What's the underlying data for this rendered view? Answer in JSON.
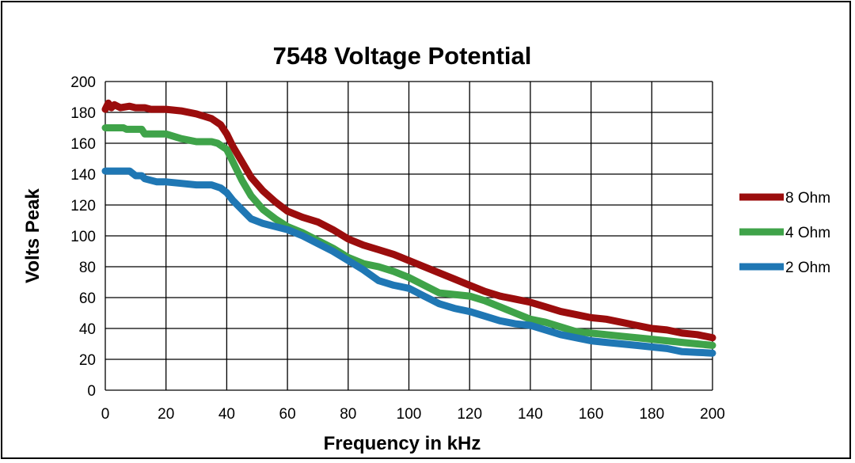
{
  "chart_data": {
    "type": "line",
    "title": "7548 Voltage Potential",
    "xlabel": "Frequency in kHz",
    "ylabel": "Volts Peak",
    "xlim": [
      0,
      200
    ],
    "ylim": [
      0,
      200
    ],
    "x_ticks": [
      0,
      20,
      40,
      60,
      80,
      100,
      120,
      140,
      160,
      180,
      200
    ],
    "y_ticks": [
      0,
      20,
      40,
      60,
      80,
      100,
      120,
      140,
      160,
      180,
      200
    ],
    "grid": true,
    "legend_position": "right",
    "series": [
      {
        "name": "8 Ohm",
        "color": "#9b0d0d",
        "points": [
          [
            0,
            182
          ],
          [
            1,
            186
          ],
          [
            2,
            183
          ],
          [
            3,
            185
          ],
          [
            5,
            183
          ],
          [
            8,
            184
          ],
          [
            10,
            183
          ],
          [
            13,
            183
          ],
          [
            15,
            182
          ],
          [
            20,
            182
          ],
          [
            25,
            181
          ],
          [
            30,
            179
          ],
          [
            35,
            176
          ],
          [
            38,
            172
          ],
          [
            40,
            166
          ],
          [
            42,
            158
          ],
          [
            45,
            148
          ],
          [
            48,
            138
          ],
          [
            52,
            129
          ],
          [
            56,
            122
          ],
          [
            60,
            116
          ],
          [
            65,
            112
          ],
          [
            70,
            109
          ],
          [
            75,
            104
          ],
          [
            80,
            98
          ],
          [
            85,
            94
          ],
          [
            90,
            91
          ],
          [
            95,
            88
          ],
          [
            100,
            84
          ],
          [
            105,
            80
          ],
          [
            110,
            76
          ],
          [
            115,
            72
          ],
          [
            120,
            68
          ],
          [
            125,
            64
          ],
          [
            130,
            61
          ],
          [
            135,
            59
          ],
          [
            140,
            57
          ],
          [
            145,
            54
          ],
          [
            150,
            51
          ],
          [
            155,
            49
          ],
          [
            160,
            47
          ],
          [
            165,
            46
          ],
          [
            170,
            44
          ],
          [
            175,
            42
          ],
          [
            180,
            40
          ],
          [
            185,
            39
          ],
          [
            190,
            37
          ],
          [
            195,
            36
          ],
          [
            200,
            34
          ]
        ]
      },
      {
        "name": "4 Ohm",
        "color": "#3fa349",
        "points": [
          [
            0,
            170
          ],
          [
            3,
            170
          ],
          [
            6,
            170
          ],
          [
            7,
            169
          ],
          [
            10,
            169
          ],
          [
            12,
            169
          ],
          [
            13,
            166
          ],
          [
            15,
            166
          ],
          [
            20,
            166
          ],
          [
            25,
            163
          ],
          [
            30,
            161
          ],
          [
            35,
            161
          ],
          [
            37,
            160
          ],
          [
            40,
            156
          ],
          [
            42,
            148
          ],
          [
            45,
            136
          ],
          [
            48,
            126
          ],
          [
            52,
            117
          ],
          [
            56,
            111
          ],
          [
            60,
            106
          ],
          [
            65,
            102
          ],
          [
            70,
            97
          ],
          [
            75,
            92
          ],
          [
            80,
            86
          ],
          [
            85,
            82
          ],
          [
            90,
            80
          ],
          [
            95,
            77
          ],
          [
            100,
            73
          ],
          [
            105,
            68
          ],
          [
            110,
            63
          ],
          [
            115,
            62
          ],
          [
            120,
            61
          ],
          [
            125,
            58
          ],
          [
            130,
            54
          ],
          [
            135,
            50
          ],
          [
            140,
            46
          ],
          [
            145,
            44
          ],
          [
            150,
            41
          ],
          [
            155,
            38
          ],
          [
            160,
            37
          ],
          [
            165,
            36
          ],
          [
            170,
            35
          ],
          [
            175,
            34
          ],
          [
            180,
            33
          ],
          [
            185,
            32
          ],
          [
            190,
            31
          ],
          [
            195,
            30
          ],
          [
            200,
            29
          ]
        ]
      },
      {
        "name": "2 Ohm",
        "color": "#1f77b4",
        "points": [
          [
            0,
            142
          ],
          [
            3,
            142
          ],
          [
            6,
            142
          ],
          [
            8,
            142
          ],
          [
            10,
            139
          ],
          [
            12,
            139
          ],
          [
            13,
            137
          ],
          [
            15,
            136
          ],
          [
            17,
            135
          ],
          [
            20,
            135
          ],
          [
            25,
            134
          ],
          [
            30,
            133
          ],
          [
            35,
            133
          ],
          [
            38,
            131
          ],
          [
            40,
            128
          ],
          [
            42,
            123
          ],
          [
            45,
            117
          ],
          [
            48,
            111
          ],
          [
            52,
            108
          ],
          [
            56,
            106
          ],
          [
            60,
            104
          ],
          [
            65,
            100
          ],
          [
            70,
            95
          ],
          [
            75,
            90
          ],
          [
            80,
            84
          ],
          [
            85,
            78
          ],
          [
            90,
            71
          ],
          [
            95,
            68
          ],
          [
            100,
            66
          ],
          [
            105,
            61
          ],
          [
            110,
            56
          ],
          [
            115,
            53
          ],
          [
            120,
            51
          ],
          [
            125,
            48
          ],
          [
            130,
            45
          ],
          [
            135,
            43
          ],
          [
            140,
            42
          ],
          [
            145,
            39
          ],
          [
            150,
            36
          ],
          [
            155,
            34
          ],
          [
            160,
            32
          ],
          [
            165,
            31
          ],
          [
            170,
            30
          ],
          [
            175,
            29
          ],
          [
            180,
            28
          ],
          [
            185,
            27
          ],
          [
            190,
            25
          ],
          [
            195,
            24.5
          ],
          [
            200,
            24
          ]
        ]
      }
    ]
  }
}
